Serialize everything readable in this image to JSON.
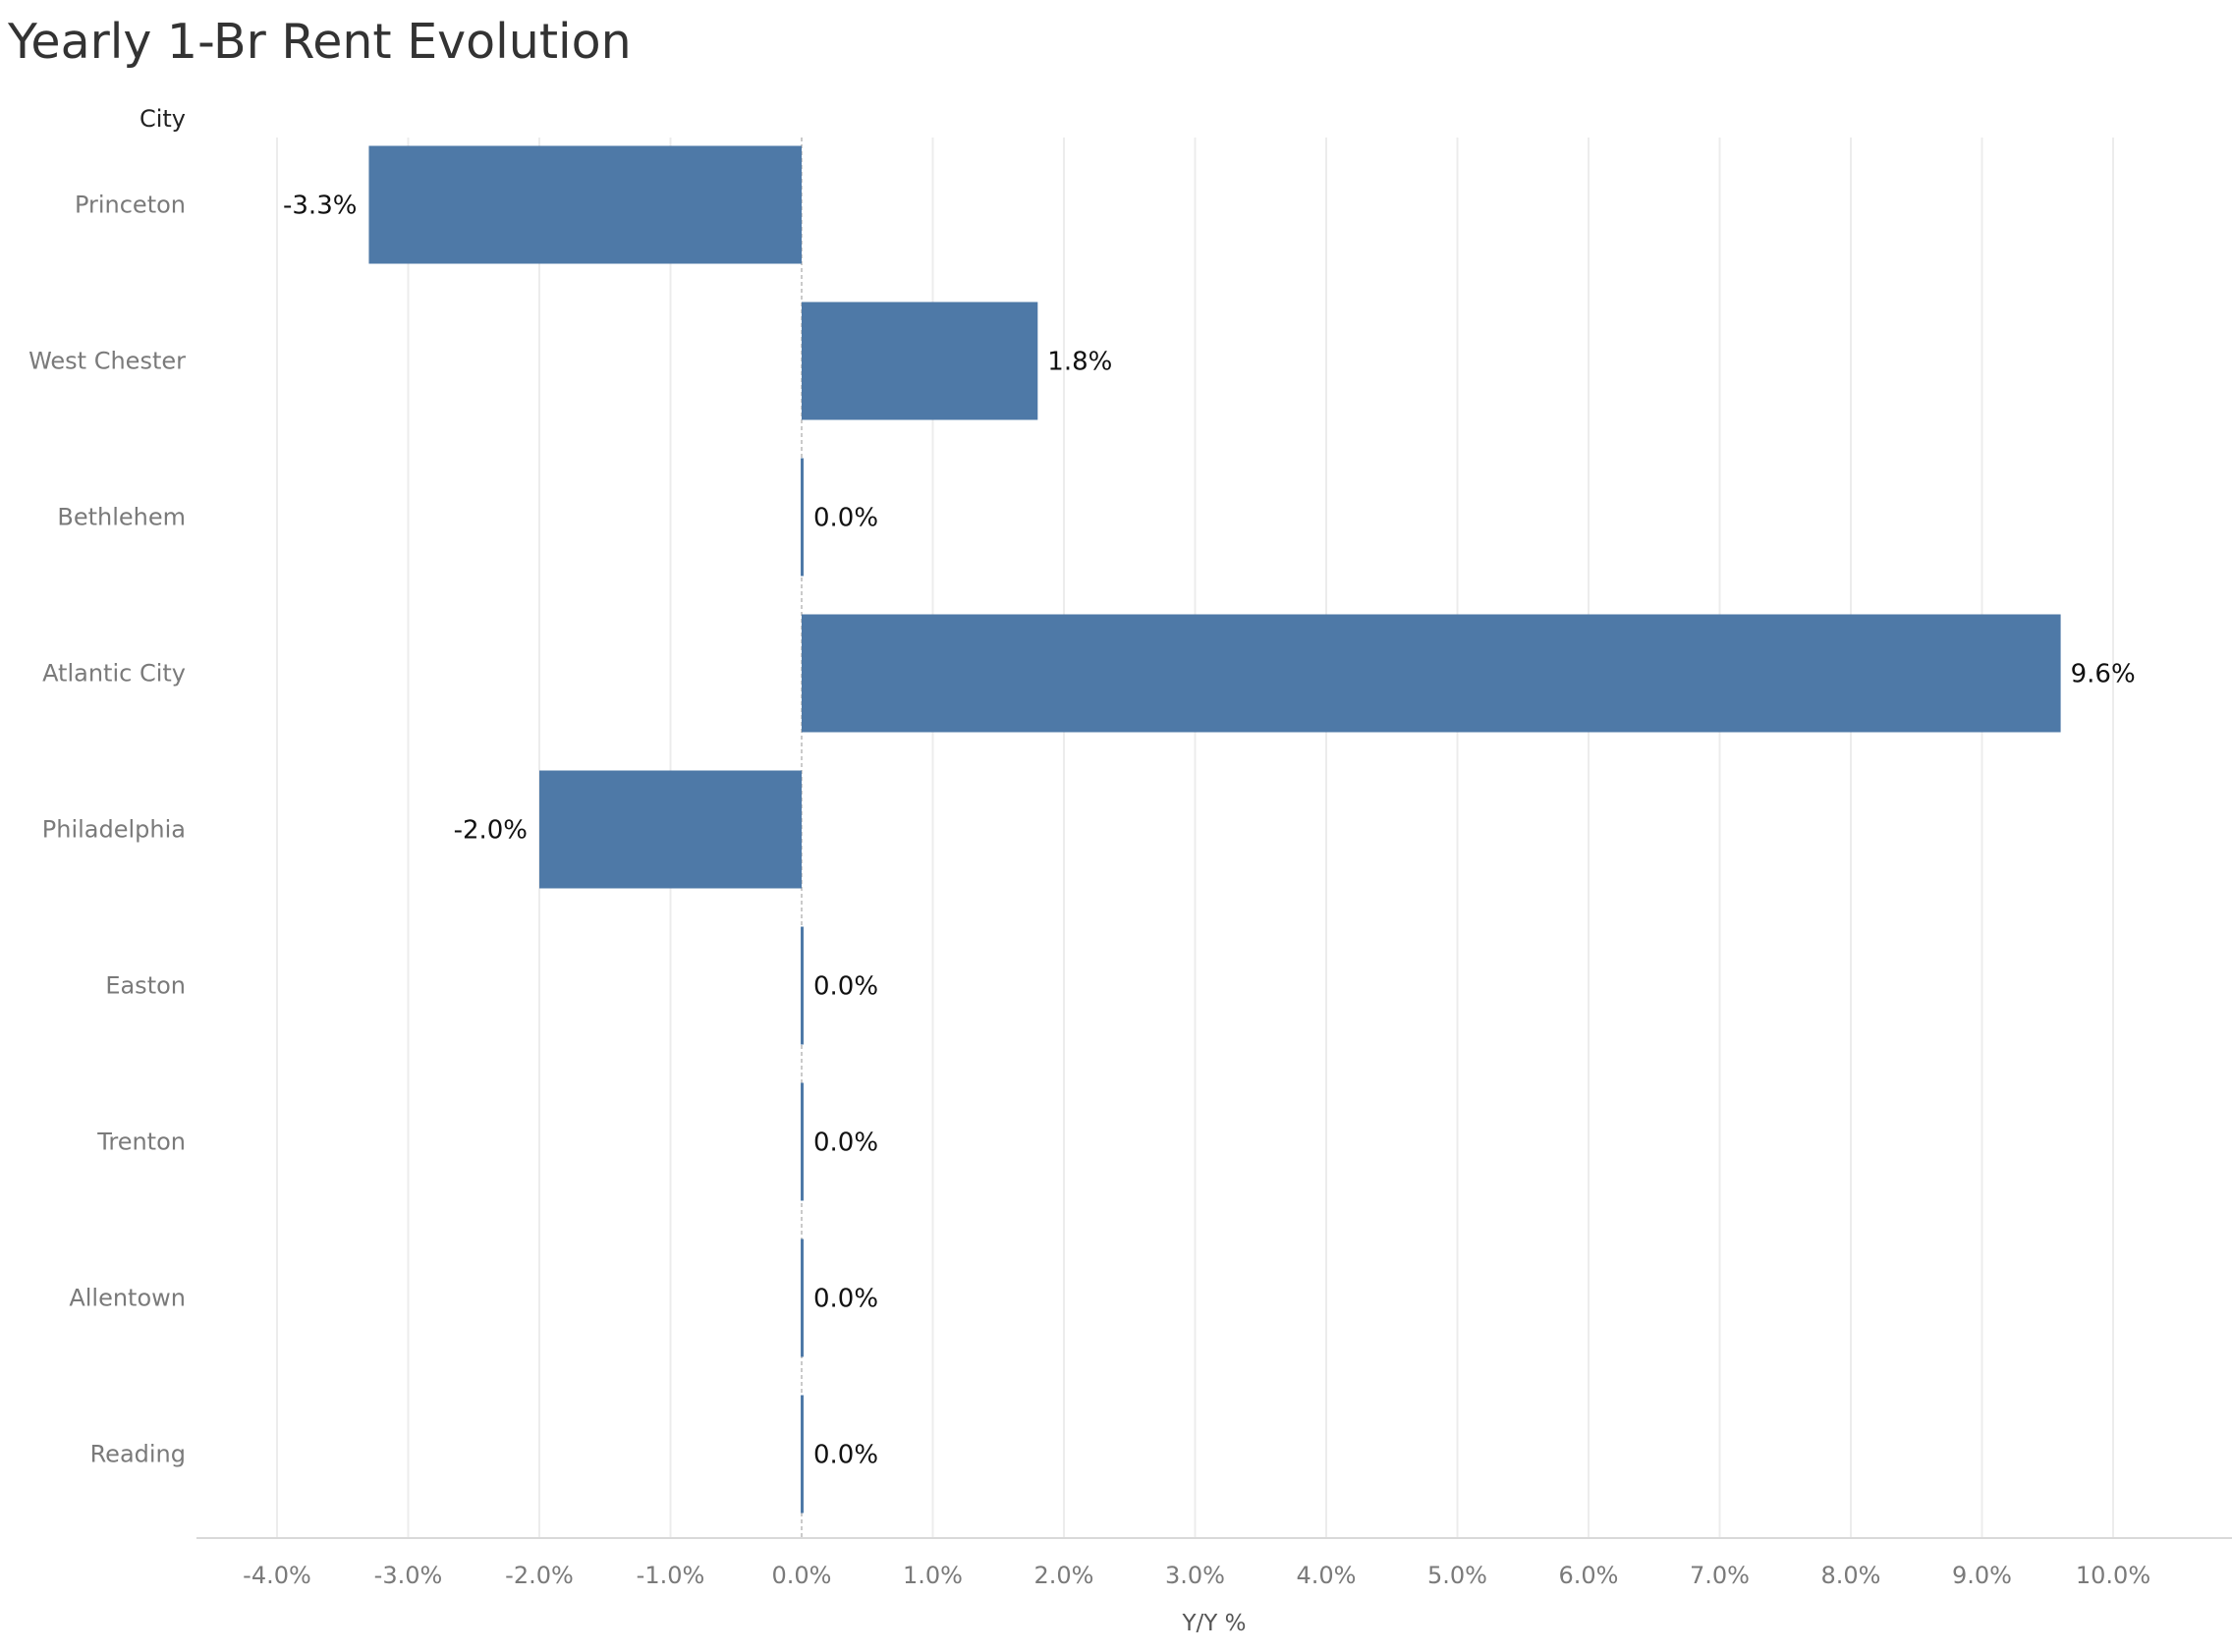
{
  "chart_data": {
    "type": "bar",
    "orientation": "horizontal",
    "title": "Yearly 1-Br Rent Evolution",
    "row_header": "City",
    "xlabel": "Y/Y %",
    "ylabel": "",
    "xlim": [
      -4.6,
      10.6
    ],
    "x_ticks": [
      -4,
      -3,
      -2,
      -1,
      0,
      1,
      2,
      3,
      4,
      5,
      6,
      7,
      8,
      9,
      10
    ],
    "x_tick_labels": [
      "-4.0%",
      "-3.0%",
      "-2.0%",
      "-1.0%",
      "0.0%",
      "1.0%",
      "2.0%",
      "3.0%",
      "4.0%",
      "5.0%",
      "6.0%",
      "7.0%",
      "8.0%",
      "9.0%",
      "10.0%"
    ],
    "categories": [
      "Princeton",
      "West Chester",
      "Bethlehem",
      "Atlantic City",
      "Philadelphia",
      "Easton",
      "Trenton",
      "Allentown",
      "Reading"
    ],
    "values": [
      -3.3,
      1.8,
      0.0,
      9.6,
      -2.0,
      0.0,
      0.0,
      0.0,
      0.0
    ],
    "data_labels": [
      "-3.3%",
      "1.8%",
      "0.0%",
      "9.6%",
      "-2.0%",
      "0.0%",
      "0.0%",
      "0.0%",
      "0.0%"
    ],
    "grid": "vertical",
    "zero_line": "dashed",
    "legend": "none",
    "colors": {
      "bar": "#4e79a7",
      "grid": "#ececec",
      "axis": "#d9d9d9",
      "zero_line": "#b8b8b8"
    }
  }
}
